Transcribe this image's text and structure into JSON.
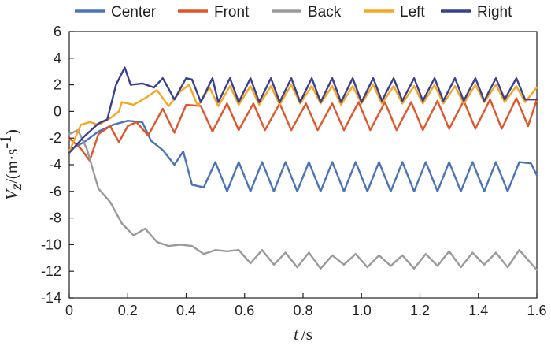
{
  "chart_data": {
    "type": "line",
    "title": "",
    "xlabel": {
      "var": "t",
      "unit": "/s"
    },
    "ylabel": {
      "var": "V",
      "sub": "z",
      "unit": "/(m·s",
      "sup": "-1",
      "close": ")"
    },
    "xlim": [
      0,
      1.6
    ],
    "ylim": [
      -14,
      6
    ],
    "xticks": [
      0,
      0.2,
      0.4,
      0.6,
      0.8,
      1.0,
      1.2,
      1.4,
      1.6
    ],
    "xtick_labels": [
      "0",
      "0.2",
      "0.4",
      "0.6",
      "0.8",
      "1.0",
      "1.2",
      "1.4",
      "1.6"
    ],
    "yticks": [
      6,
      4,
      2,
      0,
      -2,
      -4,
      -6,
      -8,
      -10,
      -12,
      -14
    ],
    "ytick_labels": [
      "6",
      "4",
      "2",
      "0",
      "-2",
      "-4",
      "-6",
      "-8",
      "-10",
      "-12",
      "-14"
    ],
    "legend_position": "top",
    "series": [
      {
        "name": "Center",
        "color": "#4a74b6",
        "x": [
          0,
          0.05,
          0.1,
          0.15,
          0.2,
          0.25,
          0.28,
          0.32,
          0.36,
          0.39,
          0.42,
          0.46,
          0.5,
          0.54,
          0.58,
          0.62,
          0.66,
          0.7,
          0.74,
          0.78,
          0.82,
          0.86,
          0.9,
          0.94,
          0.98,
          1.02,
          1.06,
          1.1,
          1.14,
          1.18,
          1.22,
          1.26,
          1.3,
          1.34,
          1.38,
          1.42,
          1.46,
          1.5,
          1.54,
          1.58,
          1.6
        ],
        "y": [
          -2.9,
          -2.3,
          -1.5,
          -1.0,
          -0.7,
          -0.8,
          -2.2,
          -2.9,
          -4.0,
          -3.0,
          -5.5,
          -5.7,
          -3.8,
          -6.0,
          -3.8,
          -6.0,
          -3.8,
          -6.0,
          -3.8,
          -6.0,
          -3.8,
          -6.0,
          -3.8,
          -6.0,
          -3.8,
          -6.0,
          -3.8,
          -6.0,
          -3.8,
          -6.0,
          -3.8,
          -6.0,
          -3.8,
          -6.0,
          -3.8,
          -6.0,
          -3.8,
          -6.0,
          -3.8,
          -3.9,
          -4.8
        ]
      },
      {
        "name": "Front",
        "color": "#e0562a",
        "x": [
          0,
          0.04,
          0.07,
          0.1,
          0.14,
          0.17,
          0.2,
          0.23,
          0.27,
          0.32,
          0.36,
          0.4,
          0.45,
          0.49,
          0.54,
          0.58,
          0.63,
          0.67,
          0.72,
          0.76,
          0.81,
          0.85,
          0.9,
          0.94,
          0.99,
          1.03,
          1.08,
          1.12,
          1.17,
          1.21,
          1.26,
          1.3,
          1.35,
          1.39,
          1.44,
          1.48,
          1.53,
          1.57,
          1.6
        ],
        "y": [
          -2.0,
          -2.8,
          -3.7,
          -1.7,
          -1.1,
          -2.3,
          -1.1,
          -0.8,
          -1.8,
          0.2,
          -1.6,
          0.5,
          0.4,
          -1.5,
          0.6,
          -1.4,
          0.6,
          -1.4,
          0.6,
          -1.4,
          0.6,
          -1.4,
          0.6,
          -1.4,
          0.7,
          -1.4,
          0.7,
          -1.4,
          0.7,
          -1.4,
          0.8,
          -1.3,
          0.8,
          -1.3,
          0.9,
          -1.3,
          1.0,
          -1.1,
          0.9
        ]
      },
      {
        "name": "Back",
        "color": "#9a9a9a",
        "x": [
          0,
          0.03,
          0.06,
          0.1,
          0.14,
          0.18,
          0.22,
          0.26,
          0.3,
          0.34,
          0.38,
          0.42,
          0.46,
          0.5,
          0.54,
          0.58,
          0.62,
          0.66,
          0.7,
          0.74,
          0.78,
          0.82,
          0.86,
          0.9,
          0.94,
          0.98,
          1.02,
          1.06,
          1.1,
          1.14,
          1.18,
          1.22,
          1.26,
          1.3,
          1.34,
          1.38,
          1.42,
          1.46,
          1.5,
          1.54,
          1.6
        ],
        "y": [
          -1.7,
          -1.4,
          -2.8,
          -5.8,
          -6.8,
          -8.4,
          -9.3,
          -8.8,
          -9.8,
          -10.1,
          -10.0,
          -10.1,
          -10.7,
          -10.4,
          -10.5,
          -10.4,
          -11.4,
          -10.4,
          -11.5,
          -10.6,
          -11.7,
          -10.6,
          -11.8,
          -10.8,
          -11.5,
          -10.7,
          -11.7,
          -10.8,
          -11.6,
          -10.8,
          -11.8,
          -10.7,
          -11.6,
          -10.5,
          -11.7,
          -10.6,
          -11.5,
          -10.6,
          -11.7,
          -10.4,
          -11.9
        ]
      },
      {
        "name": "Left",
        "color": "#f5a623",
        "x": [
          0,
          0.04,
          0.07,
          0.1,
          0.14,
          0.17,
          0.18,
          0.22,
          0.26,
          0.3,
          0.34,
          0.38,
          0.41,
          0.44,
          0.48,
          0.51,
          0.55,
          0.58,
          0.62,
          0.65,
          0.69,
          0.72,
          0.76,
          0.79,
          0.83,
          0.86,
          0.9,
          0.93,
          0.97,
          1.0,
          1.04,
          1.07,
          1.11,
          1.14,
          1.18,
          1.21,
          1.25,
          1.28,
          1.32,
          1.35,
          1.39,
          1.42,
          1.46,
          1.49,
          1.53,
          1.56,
          1.6
        ],
        "y": [
          -3.0,
          -1.0,
          -0.8,
          -1.0,
          -0.5,
          0.0,
          0.7,
          0.5,
          1.0,
          1.6,
          0.4,
          1.5,
          2.0,
          0.4,
          1.8,
          0.4,
          1.9,
          0.5,
          1.9,
          0.5,
          1.9,
          0.5,
          2.0,
          0.6,
          1.9,
          0.6,
          1.9,
          0.5,
          1.9,
          0.6,
          2.0,
          0.6,
          1.9,
          0.6,
          1.9,
          0.6,
          2.0,
          0.6,
          1.9,
          0.6,
          2.0,
          0.7,
          2.0,
          0.7,
          1.9,
          0.7,
          1.8
        ]
      },
      {
        "name": "Right",
        "color": "#3a3f8f",
        "x": [
          0,
          0.05,
          0.1,
          0.13,
          0.16,
          0.19,
          0.21,
          0.25,
          0.29,
          0.32,
          0.36,
          0.4,
          0.42,
          0.45,
          0.49,
          0.51,
          0.55,
          0.58,
          0.62,
          0.65,
          0.69,
          0.72,
          0.76,
          0.79,
          0.83,
          0.86,
          0.9,
          0.93,
          0.97,
          1.0,
          1.04,
          1.07,
          1.11,
          1.14,
          1.18,
          1.21,
          1.25,
          1.28,
          1.32,
          1.35,
          1.39,
          1.42,
          1.46,
          1.49,
          1.53,
          1.56,
          1.6
        ],
        "y": [
          -3.1,
          -1.9,
          -0.9,
          -0.6,
          2.0,
          3.3,
          2.0,
          2.1,
          1.8,
          2.5,
          0.9,
          2.5,
          2.4,
          0.7,
          2.5,
          0.7,
          2.5,
          0.7,
          2.5,
          0.7,
          2.5,
          0.7,
          2.5,
          0.7,
          2.5,
          0.7,
          2.5,
          0.7,
          2.5,
          0.7,
          2.5,
          0.8,
          2.5,
          0.8,
          2.5,
          0.8,
          2.5,
          0.8,
          2.5,
          0.8,
          2.5,
          0.8,
          2.5,
          0.9,
          2.5,
          0.9,
          0.9
        ]
      }
    ]
  }
}
